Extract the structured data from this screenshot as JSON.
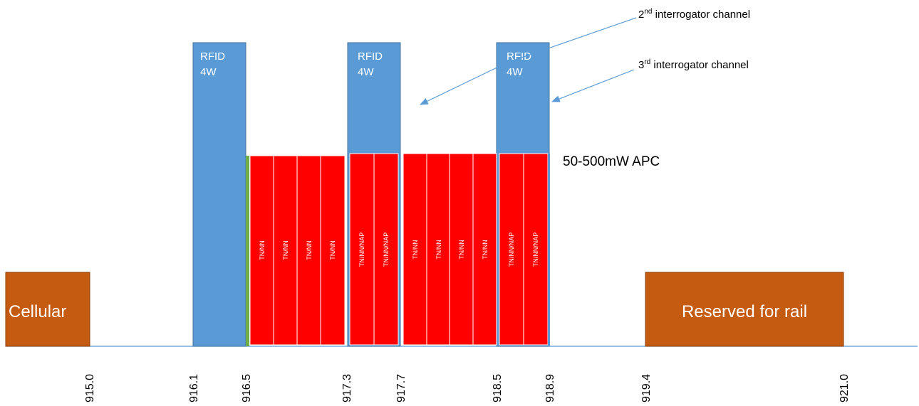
{
  "blocks": {
    "cellular": {
      "label": "Cellular",
      "color": "#c55a11"
    },
    "rail": {
      "label": "Reserved for rail",
      "color": "#c55a11"
    },
    "rfid": [
      {
        "line1": "RFID",
        "line2": "4W"
      },
      {
        "line1": "RFID",
        "line2": "4W"
      },
      {
        "line1": "RFID",
        "line2": "4W"
      }
    ],
    "rfid_color": "#5b9bd5"
  },
  "channels": {
    "color": "#ff0000",
    "group1": [
      "TN/NN",
      "TN/NN",
      "TN/NN",
      "TN/NN"
    ],
    "group2": [
      "TN/NN/NAP",
      "TN/NN/NAP"
    ],
    "group3": [
      "TN/NN",
      "TN/NN",
      "TN/NN",
      "TN/NN"
    ],
    "group4": [
      "TN/NN/NAP",
      "TN/NN/NAP"
    ]
  },
  "annotations": {
    "apc": "50-500mW APC",
    "second": {
      "sup_prefix": "2",
      "sup": "nd",
      "text": " interrogator channel"
    },
    "third": {
      "sup_prefix": "3",
      "sup": "rd",
      "text": " interrogator channel"
    }
  },
  "axis": {
    "ticks": [
      "915.0",
      "916.1",
      "916.5",
      "917.3",
      "917.7",
      "918.5",
      "918.9",
      "919.4",
      "921.0"
    ]
  }
}
